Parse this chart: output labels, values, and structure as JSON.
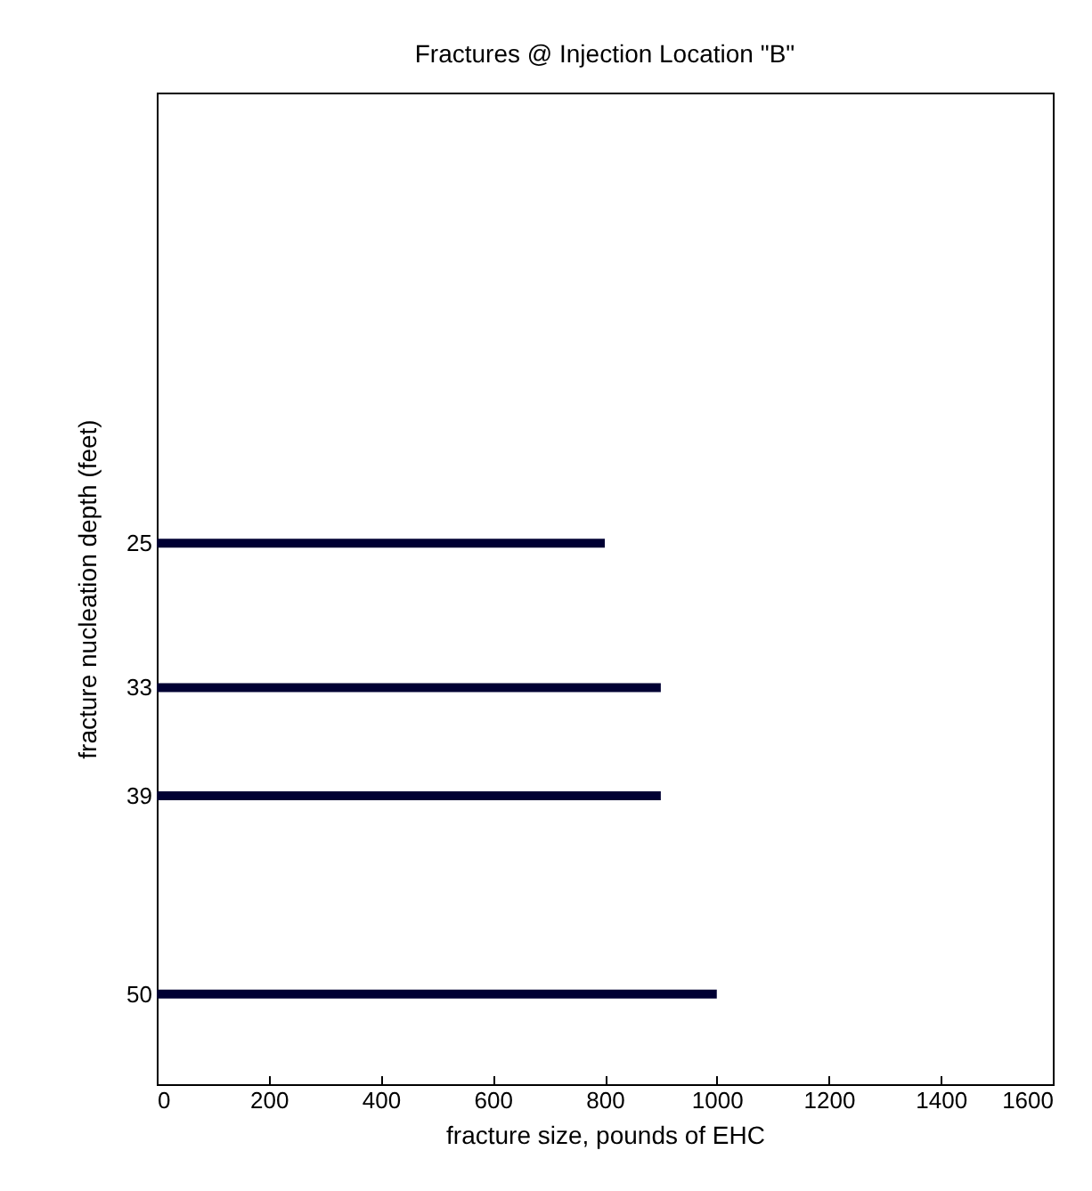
{
  "chart_data": {
    "type": "bar",
    "orientation": "horizontal",
    "title": "Fractures @ Injection Location \"B\"",
    "xlabel": "fracture size, pounds of EHC",
    "ylabel": "fracture nucleation depth (feet)",
    "x": [
      25,
      33,
      39,
      50
    ],
    "values": [
      800,
      900,
      900,
      1000
    ],
    "color": "#000033",
    "xlim": [
      0,
      1600
    ],
    "xticks": [
      0,
      200,
      400,
      600,
      800,
      1000,
      1200,
      1400,
      1600
    ],
    "ylim": [
      55,
      0
    ],
    "yticks": [
      25,
      33,
      39,
      50
    ],
    "grid": false
  }
}
